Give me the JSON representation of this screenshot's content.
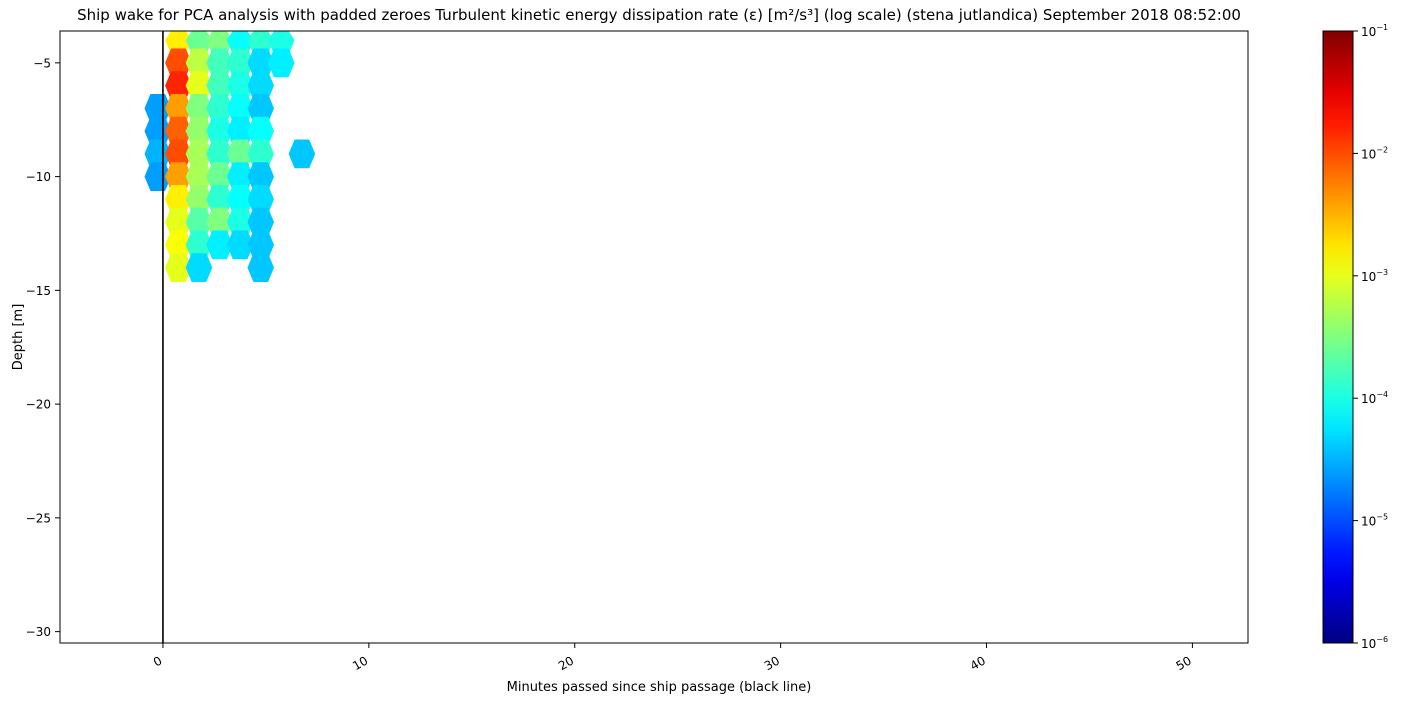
{
  "chart_data": {
    "type": "heatmap",
    "title": "Ship wake for PCA analysis with padded zeroes Turbulent kinetic energy dissipation rate (ε) [m²/s³] (log scale) (stena jutlandica) September 2018 08:52:00",
    "xlabel": "Minutes passed since ship passage (black line)",
    "ylabel": "Depth [m]",
    "xlim": [
      -5,
      52.7
    ],
    "ylim": [
      -30.5,
      -3.6
    ],
    "xticks": [
      0,
      10,
      20,
      30,
      40,
      50
    ],
    "xtick_labels": [
      "0",
      "10",
      "20",
      "30",
      "40",
      "50"
    ],
    "yticks": [
      -5,
      -10,
      -15,
      -20,
      -25,
      -30
    ],
    "ytick_labels": [
      "−5",
      "−10",
      "−15",
      "−20",
      "−25",
      "−30"
    ],
    "ship_passage_x": 0,
    "colorbar": {
      "scale": "log",
      "colormap": "jet",
      "min": 1e-06,
      "max": 0.1,
      "ticks": [
        1e-06,
        1e-05,
        0.0001,
        0.001,
        0.01,
        0.1
      ],
      "tick_labels": [
        {
          "base": "10",
          "exp": "−6"
        },
        {
          "base": "10",
          "exp": "−5"
        },
        {
          "base": "10",
          "exp": "−4"
        },
        {
          "base": "10",
          "exp": "−3"
        },
        {
          "base": "10",
          "exp": "−2"
        },
        {
          "base": "10",
          "exp": "−1"
        }
      ]
    },
    "grid": false,
    "x_minutes": [
      -0.25,
      0.75,
      1.75,
      2.75,
      3.75,
      4.75,
      5.75,
      6.75
    ],
    "depths": [
      -4,
      -5,
      -6,
      -7,
      -8,
      -9,
      -10,
      -11,
      -12,
      -13,
      -14
    ],
    "epsilon_log10": [
      [
        null,
        -2.8,
        -3.6,
        -3.5,
        -4.1,
        -3.9,
        -4.0,
        null
      ],
      [
        null,
        -2.0,
        -3.2,
        -3.8,
        -3.9,
        -4.3,
        -4.2,
        null
      ],
      [
        null,
        -1.8,
        -3.0,
        -3.8,
        -4.0,
        -4.3,
        null,
        null
      ],
      [
        -4.6,
        -2.4,
        -3.5,
        -3.9,
        -4.1,
        -4.4,
        null,
        null
      ],
      [
        -4.6,
        -2.1,
        -3.4,
        -4.0,
        -4.2,
        -4.1,
        null,
        null
      ],
      [
        -4.5,
        -2.0,
        -3.3,
        -3.9,
        -3.6,
        -3.9,
        null,
        -4.4
      ],
      [
        -4.6,
        -2.4,
        -3.3,
        -3.6,
        -4.2,
        -4.4,
        null,
        null
      ],
      [
        null,
        -2.8,
        -3.4,
        -3.9,
        -4.1,
        -4.3,
        null,
        null
      ],
      [
        null,
        -3.0,
        -3.7,
        -3.5,
        -4.0,
        -4.4,
        null,
        null
      ],
      [
        null,
        -2.9,
        -3.9,
        -4.2,
        -4.3,
        -4.4,
        null,
        null
      ],
      [
        null,
        -3.0,
        -4.3,
        null,
        null,
        -4.4,
        null,
        null
      ]
    ]
  }
}
